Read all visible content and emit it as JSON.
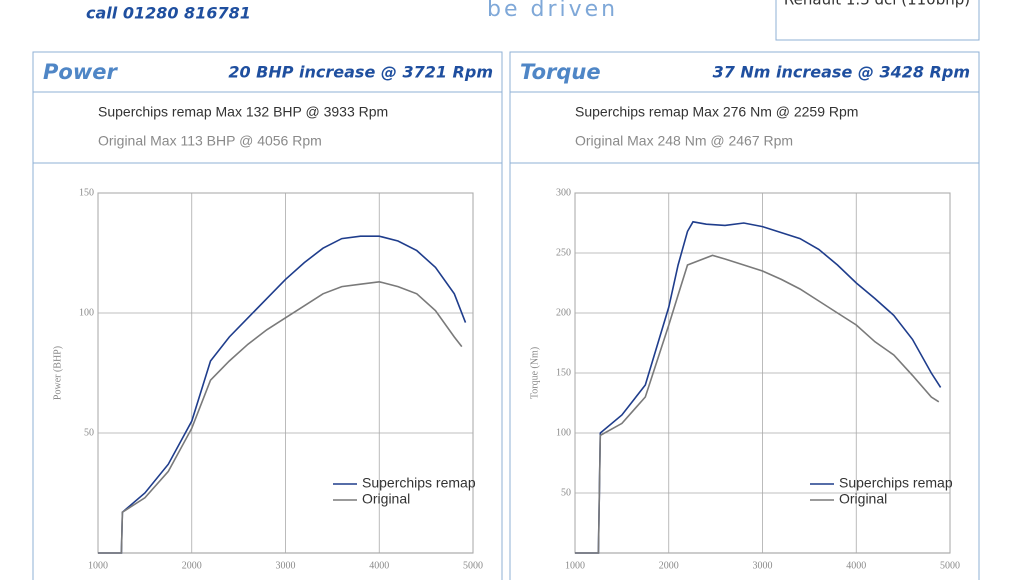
{
  "header": {
    "phone": "call 01280 816781",
    "tagline": "be driven",
    "vehicle": "Renault 1.5 dci (110bhp)"
  },
  "chart_data": [
    {
      "type": "line",
      "title": "Power",
      "headline": "20 BHP increase @ 3721 Rpm",
      "notes": [
        "Superchips remap Max 132 BHP @ 3933 Rpm",
        "Original Max 113 BHP @ 4056 Rpm"
      ],
      "y_label": "Power (BHP)",
      "xlim": [
        1000,
        5000
      ],
      "xticks": [
        1000,
        2000,
        3000,
        4000,
        5000
      ],
      "ylim": [
        0,
        150
      ],
      "yticks": [
        50,
        100,
        150
      ],
      "grid": true,
      "series": [
        {
          "name": "Superchips remap",
          "color": "#1f3d8c",
          "x": [
            1000,
            1250,
            1260,
            1500,
            1750,
            2000,
            2200,
            2400,
            2600,
            2800,
            3000,
            3200,
            3400,
            3600,
            3800,
            4000,
            4200,
            4400,
            4600,
            4800,
            4920
          ],
          "values": [
            0,
            0,
            17,
            25,
            37,
            55,
            80,
            90,
            98,
            106,
            114,
            121,
            127,
            131,
            132,
            132,
            130,
            126,
            119,
            108,
            96
          ]
        },
        {
          "name": "Original",
          "color": "#7a7a7a",
          "x": [
            1000,
            1250,
            1260,
            1500,
            1750,
            2000,
            2200,
            2400,
            2600,
            2800,
            3000,
            3200,
            3400,
            3600,
            3800,
            4000,
            4200,
            4400,
            4600,
            4800,
            4880
          ],
          "values": [
            0,
            0,
            17,
            23,
            34,
            52,
            72,
            80,
            87,
            93,
            98,
            103,
            108,
            111,
            112,
            113,
            111,
            108,
            101,
            90,
            86
          ]
        }
      ]
    },
    {
      "type": "line",
      "title": "Torque",
      "headline": "37 Nm increase @ 3428 Rpm",
      "notes": [
        "Superchips remap Max 276 Nm @ 2259 Rpm",
        "Original Max 248 Nm @ 2467 Rpm"
      ],
      "y_label": "Torque (Nm)",
      "xlim": [
        1000,
        5000
      ],
      "xticks": [
        1000,
        2000,
        3000,
        4000,
        5000
      ],
      "ylim": [
        0,
        300
      ],
      "yticks": [
        50,
        100,
        150,
        200,
        250,
        300
      ],
      "grid": true,
      "series": [
        {
          "name": "Superchips remap",
          "color": "#1f3d8c",
          "x": [
            1000,
            1250,
            1270,
            1500,
            1750,
            2000,
            2100,
            2200,
            2259,
            2400,
            2600,
            2800,
            3000,
            3200,
            3400,
            3600,
            3800,
            4000,
            4200,
            4400,
            4600,
            4800,
            4900
          ],
          "values": [
            0,
            0,
            100,
            115,
            140,
            205,
            240,
            268,
            276,
            274,
            273,
            275,
            272,
            267,
            262,
            253,
            240,
            225,
            212,
            198,
            178,
            150,
            138
          ]
        },
        {
          "name": "Original",
          "color": "#7a7a7a",
          "x": [
            1000,
            1250,
            1270,
            1500,
            1750,
            2000,
            2100,
            2200,
            2467,
            2600,
            2800,
            3000,
            3200,
            3400,
            3600,
            3800,
            4000,
            4200,
            4400,
            4600,
            4800,
            4880
          ],
          "values": [
            0,
            0,
            98,
            108,
            130,
            190,
            215,
            240,
            248,
            245,
            240,
            235,
            228,
            220,
            210,
            200,
            190,
            176,
            165,
            148,
            130,
            126
          ]
        }
      ]
    }
  ]
}
